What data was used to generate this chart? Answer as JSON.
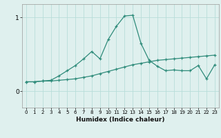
{
  "xlabel": "Humidex (Indice chaleur)",
  "x_values": [
    0,
    1,
    2,
    3,
    4,
    5,
    6,
    7,
    8,
    9,
    10,
    11,
    12,
    13,
    14,
    15,
    16,
    17,
    18,
    19,
    20,
    21,
    22,
    23
  ],
  "line1": [
    0.13,
    0.13,
    0.14,
    0.15,
    0.21,
    0.28,
    0.35,
    0.44,
    0.54,
    0.44,
    0.7,
    0.88,
    1.02,
    1.03,
    0.65,
    0.42,
    0.34,
    0.28,
    0.29,
    0.28,
    0.28,
    0.35,
    0.17,
    0.36
  ],
  "line2": [
    0.13,
    0.13,
    0.14,
    0.14,
    0.15,
    0.16,
    0.17,
    0.19,
    0.21,
    0.24,
    0.27,
    0.3,
    0.33,
    0.36,
    0.38,
    0.4,
    0.42,
    0.43,
    0.44,
    0.45,
    0.46,
    0.47,
    0.48,
    0.49
  ],
  "line_color": "#2e8b7a",
  "bg_color": "#dff0ee",
  "grid_color": "#b8ddd9",
  "ylim": [
    -0.22,
    1.18
  ],
  "xlim": [
    -0.5,
    23.5
  ],
  "yticks": [
    0,
    1
  ],
  "xticks": [
    0,
    1,
    2,
    3,
    4,
    5,
    6,
    7,
    8,
    9,
    10,
    11,
    12,
    13,
    14,
    15,
    16,
    17,
    18,
    19,
    20,
    21,
    22,
    23
  ]
}
